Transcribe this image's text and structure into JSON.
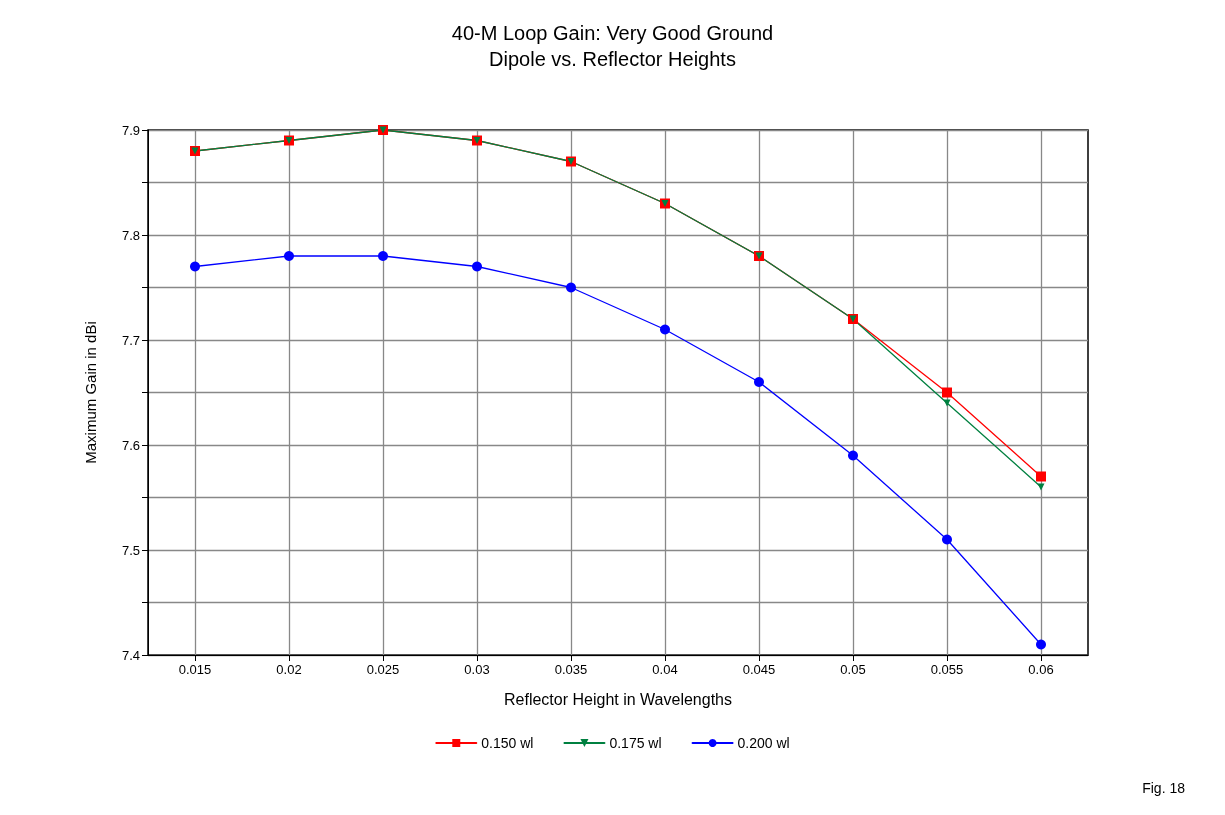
{
  "chart_data": {
    "type": "line",
    "title": "40-M Loop Gain: Very Good Ground",
    "subtitle": "Dipole vs. Reflector Heights",
    "xlabel": "Reflector Height in Wavelengths",
    "ylabel": "Maximum Gain in dBi",
    "x": [
      0.015,
      0.02,
      0.025,
      0.03,
      0.035,
      0.04,
      0.045,
      0.05,
      0.055,
      0.06
    ],
    "series": [
      {
        "name": "0.150 wl",
        "color": "#ff0000",
        "marker": "square",
        "values": [
          7.88,
          7.89,
          7.9,
          7.89,
          7.87,
          7.83,
          7.78,
          7.72,
          7.65,
          7.57
        ]
      },
      {
        "name": "0.175 wl",
        "color": "#008040",
        "marker": "triangle",
        "values": [
          7.88,
          7.89,
          7.9,
          7.89,
          7.87,
          7.83,
          7.78,
          7.72,
          7.64,
          7.56
        ]
      },
      {
        "name": "0.200 wl",
        "color": "#0000ff",
        "marker": "circle",
        "values": [
          7.77,
          7.78,
          7.78,
          7.77,
          7.75,
          7.71,
          7.66,
          7.59,
          7.51,
          7.41
        ]
      }
    ],
    "xlim": [
      0.0125,
      0.0625
    ],
    "xticks": [
      0.015,
      0.02,
      0.025,
      0.03,
      0.035,
      0.04,
      0.045,
      0.05,
      0.055,
      0.06
    ],
    "ylim": [
      7.4,
      7.9
    ],
    "yticks": [
      7.4,
      {
        "value": 7.45,
        "label": null
      },
      7.5,
      {
        "value": 7.55,
        "label": null
      },
      7.6,
      {
        "value": 7.65,
        "label": null
      },
      7.7,
      {
        "value": 7.75,
        "label": null
      },
      7.8,
      {
        "value": 7.85,
        "label": null
      },
      7.9
    ],
    "grid": true,
    "legend": "bottom",
    "line_style": "solid",
    "annotations": [
      "Fig. 18"
    ]
  }
}
